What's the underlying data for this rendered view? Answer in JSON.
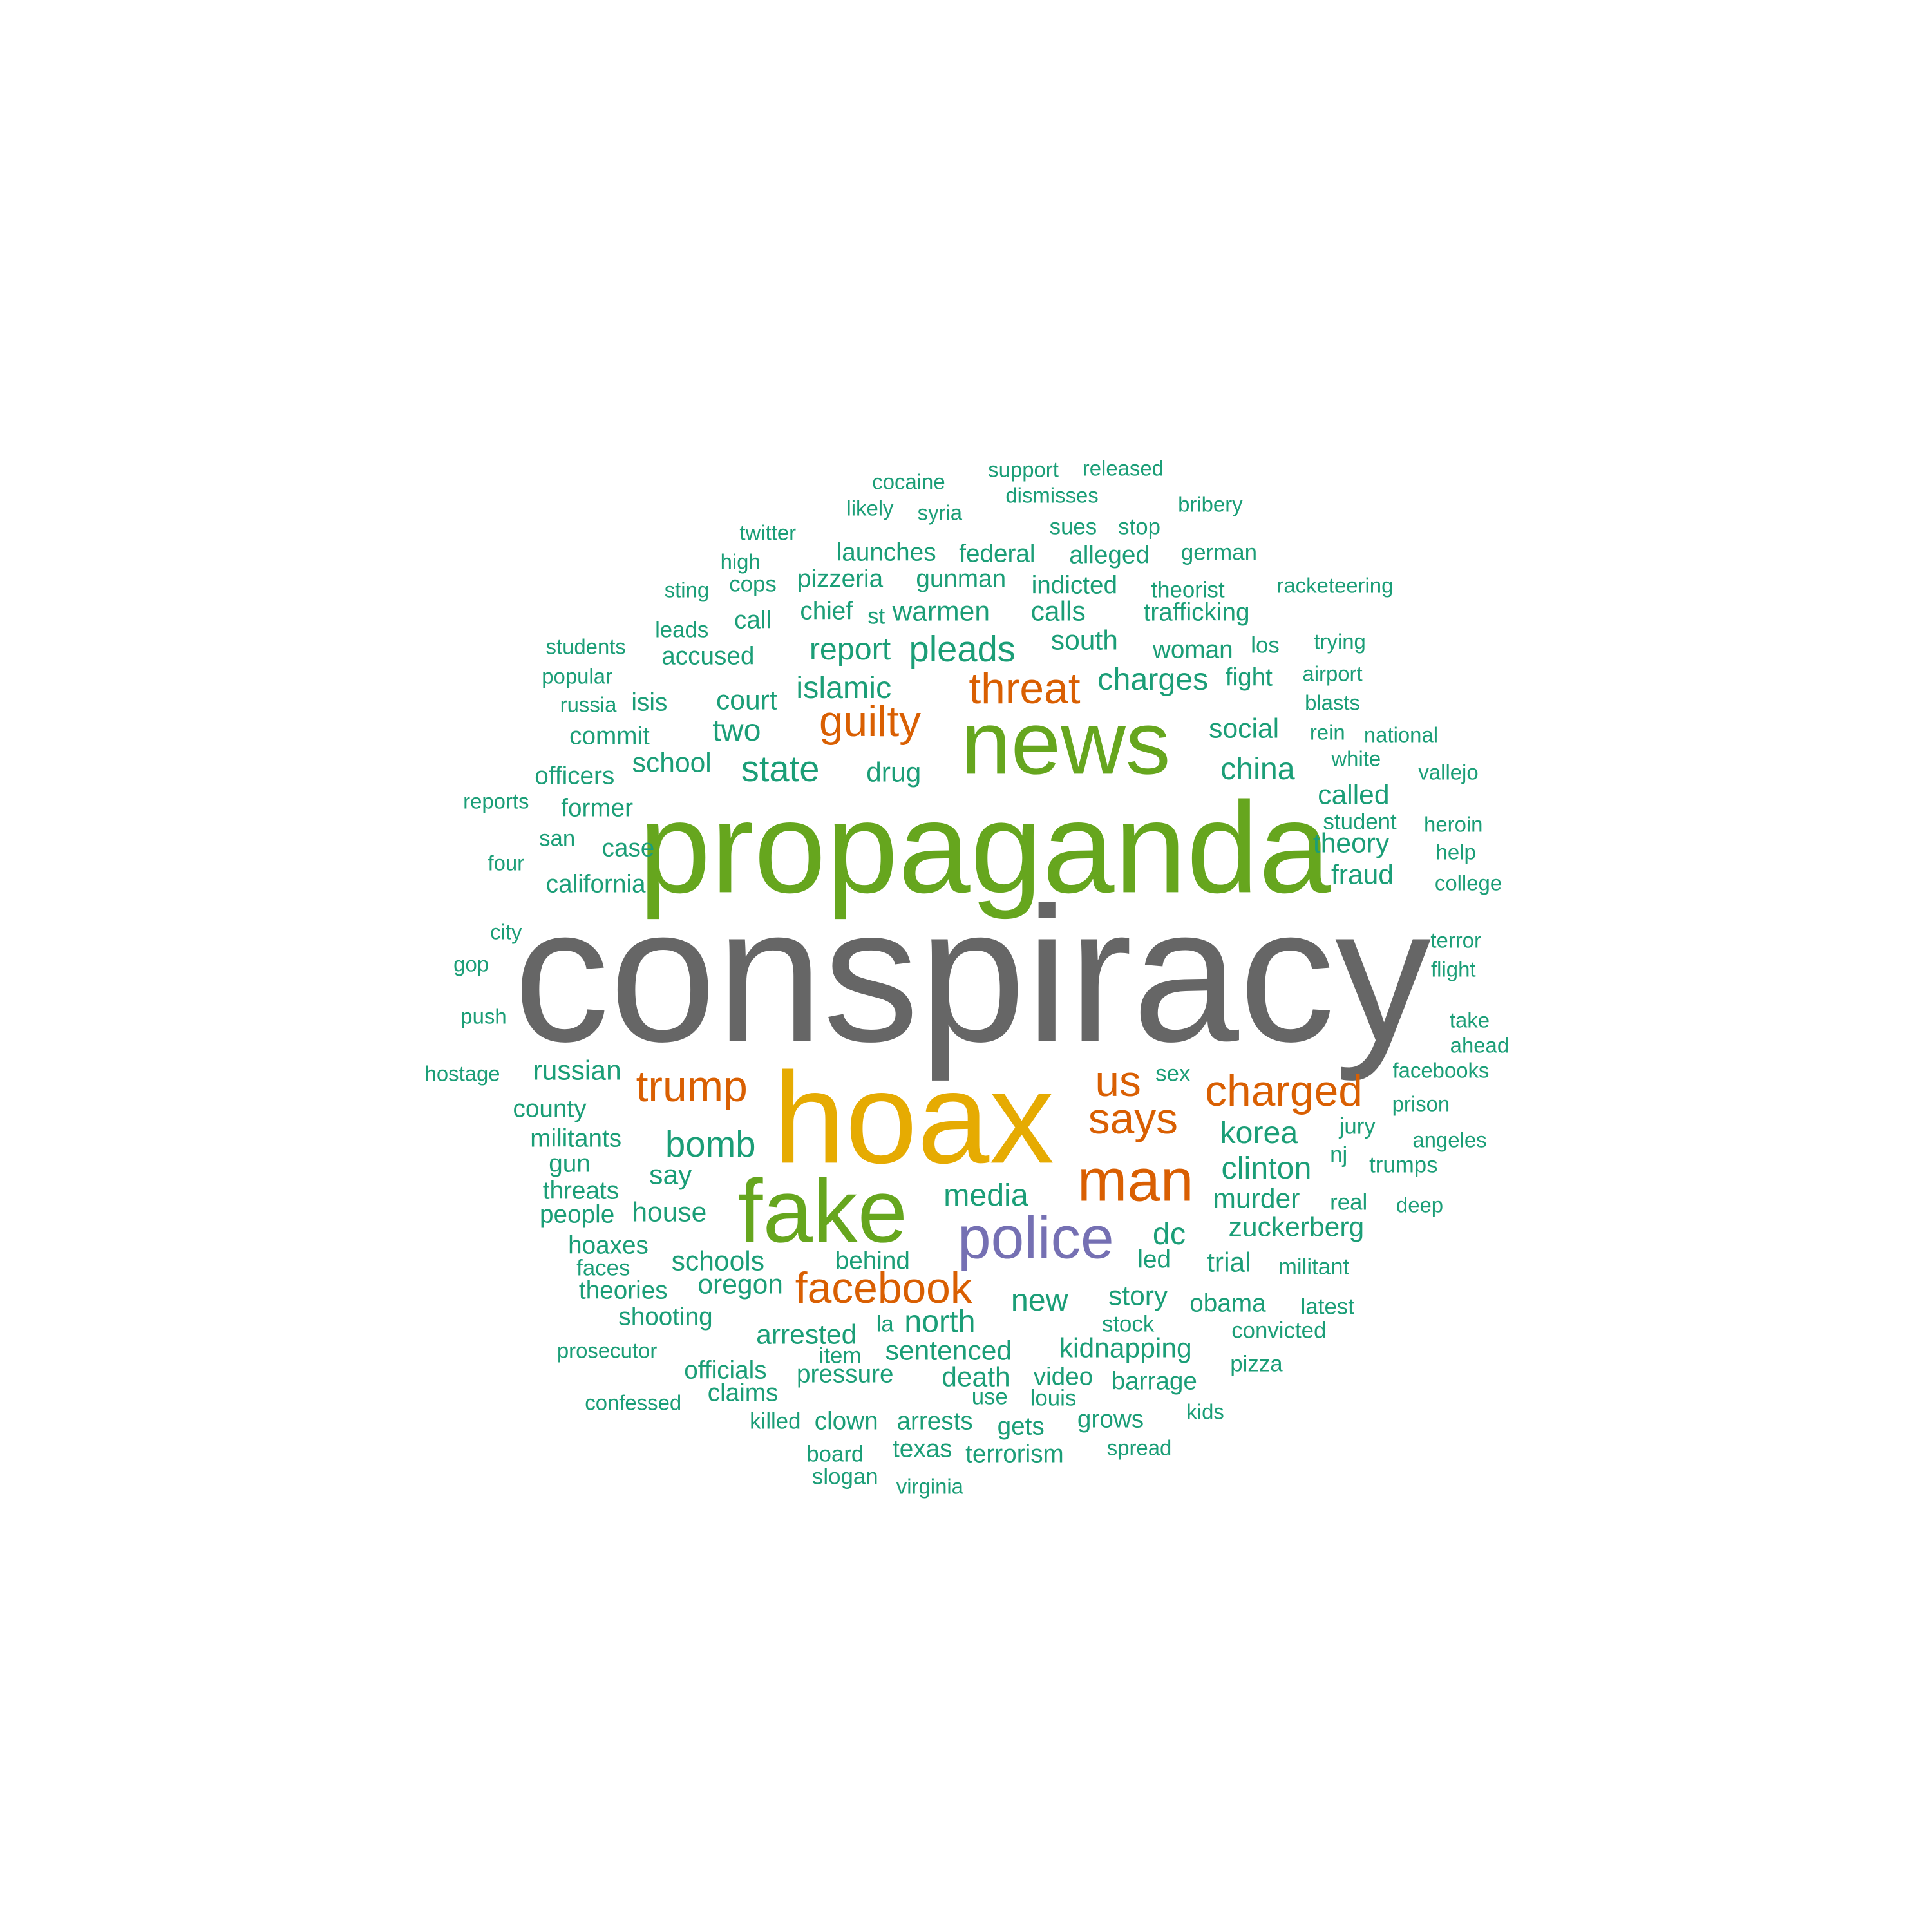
{
  "palette": {
    "dark_gray": "#666666",
    "gold": "#e6ab02",
    "green": "#66a61e",
    "purple": "#7570b3",
    "orange": "#d95f02",
    "teal": "#1b9e77"
  },
  "word_cloud": {
    "words": [
      {
        "text": "conspiracy",
        "tier": 1,
        "color": "dark_gray"
      },
      {
        "text": "propaganda",
        "tier": 2,
        "color": "green"
      },
      {
        "text": "hoax",
        "tier": 2,
        "color": "gold"
      },
      {
        "text": "news",
        "tier": 3,
        "color": "green"
      },
      {
        "text": "fake",
        "tier": 3,
        "color": "green"
      },
      {
        "text": "police",
        "tier": 4,
        "color": "purple"
      },
      {
        "text": "man",
        "tier": 4,
        "color": "orange"
      },
      {
        "text": "guilty",
        "tier": 5,
        "color": "orange"
      },
      {
        "text": "says",
        "tier": 5,
        "color": "orange"
      },
      {
        "text": "trump",
        "tier": 5,
        "color": "orange"
      },
      {
        "text": "charged",
        "tier": 5,
        "color": "orange"
      },
      {
        "text": "facebook",
        "tier": 5,
        "color": "orange"
      },
      {
        "text": "threat",
        "tier": 5,
        "color": "orange"
      },
      {
        "text": "us",
        "tier": 5,
        "color": "orange"
      },
      {
        "text": "pleads",
        "tier": 6,
        "color": "teal"
      },
      {
        "text": "state",
        "tier": 6,
        "color": "teal"
      },
      {
        "text": "bomb",
        "tier": 6,
        "color": "teal"
      },
      {
        "text": "islamic",
        "tier": 7,
        "color": "teal"
      },
      {
        "text": "report",
        "tier": 7,
        "color": "teal"
      },
      {
        "text": "charges",
        "tier": 7,
        "color": "teal"
      },
      {
        "text": "china",
        "tier": 7,
        "color": "teal"
      },
      {
        "text": "media",
        "tier": 7,
        "color": "teal"
      },
      {
        "text": "korea",
        "tier": 7,
        "color": "teal"
      },
      {
        "text": "clinton",
        "tier": 7,
        "color": "teal"
      },
      {
        "text": "north",
        "tier": 7,
        "color": "teal"
      },
      {
        "text": "new",
        "tier": 7,
        "color": "teal"
      },
      {
        "text": "dc",
        "tier": 7,
        "color": "teal"
      },
      {
        "text": "two",
        "tier": 7,
        "color": "teal"
      },
      {
        "text": "social",
        "tier": 8,
        "color": "teal"
      },
      {
        "text": "court",
        "tier": 8,
        "color": "teal"
      },
      {
        "text": "drug",
        "tier": 8,
        "color": "teal"
      },
      {
        "text": "school",
        "tier": 8,
        "color": "teal"
      },
      {
        "text": "south",
        "tier": 8,
        "color": "teal"
      },
      {
        "text": "warmen",
        "tier": 8,
        "color": "teal"
      },
      {
        "text": "calls",
        "tier": 8,
        "color": "teal"
      },
      {
        "text": "story",
        "tier": 8,
        "color": "teal"
      },
      {
        "text": "schools",
        "tier": 8,
        "color": "teal"
      },
      {
        "text": "oregon",
        "tier": 8,
        "color": "teal"
      },
      {
        "text": "sentenced",
        "tier": 8,
        "color": "teal"
      },
      {
        "text": "kidnapping",
        "tier": 8,
        "color": "teal"
      },
      {
        "text": "murder",
        "tier": 8,
        "color": "teal"
      },
      {
        "text": "zuckerberg",
        "tier": 8,
        "color": "teal"
      },
      {
        "text": "trial",
        "tier": 8,
        "color": "teal"
      },
      {
        "text": "theory",
        "tier": 8,
        "color": "teal"
      },
      {
        "text": "fraud",
        "tier": 8,
        "color": "teal"
      },
      {
        "text": "called",
        "tier": 8,
        "color": "teal"
      },
      {
        "text": "russian",
        "tier": 8,
        "color": "teal"
      },
      {
        "text": "say",
        "tier": 8,
        "color": "teal"
      },
      {
        "text": "house",
        "tier": 8,
        "color": "teal"
      },
      {
        "text": "arrested",
        "tier": 8,
        "color": "teal"
      },
      {
        "text": "death",
        "tier": 8,
        "color": "teal"
      },
      {
        "text": "launches",
        "tier": 9,
        "color": "teal"
      },
      {
        "text": "federal",
        "tier": 9,
        "color": "teal"
      },
      {
        "text": "alleged",
        "tier": 9,
        "color": "teal"
      },
      {
        "text": "pizzeria",
        "tier": 9,
        "color": "teal"
      },
      {
        "text": "gunman",
        "tier": 9,
        "color": "teal"
      },
      {
        "text": "indicted",
        "tier": 9,
        "color": "teal"
      },
      {
        "text": "trafficking",
        "tier": 9,
        "color": "teal"
      },
      {
        "text": "chief",
        "tier": 9,
        "color": "teal"
      },
      {
        "text": "call",
        "tier": 9,
        "color": "teal"
      },
      {
        "text": "accused",
        "tier": 9,
        "color": "teal"
      },
      {
        "text": "woman",
        "tier": 9,
        "color": "teal"
      },
      {
        "text": "fight",
        "tier": 9,
        "color": "teal"
      },
      {
        "text": "commit",
        "tier": 9,
        "color": "teal"
      },
      {
        "text": "officers",
        "tier": 9,
        "color": "teal"
      },
      {
        "text": "former",
        "tier": 9,
        "color": "teal"
      },
      {
        "text": "case",
        "tier": 9,
        "color": "teal"
      },
      {
        "text": "california",
        "tier": 9,
        "color": "teal"
      },
      {
        "text": "county",
        "tier": 9,
        "color": "teal"
      },
      {
        "text": "militants",
        "tier": 9,
        "color": "teal"
      },
      {
        "text": "people",
        "tier": 9,
        "color": "teal"
      },
      {
        "text": "hoaxes",
        "tier": 9,
        "color": "teal"
      },
      {
        "text": "theories",
        "tier": 9,
        "color": "teal"
      },
      {
        "text": "shooting",
        "tier": 9,
        "color": "teal"
      },
      {
        "text": "behind",
        "tier": 9,
        "color": "teal"
      },
      {
        "text": "led",
        "tier": 9,
        "color": "teal"
      },
      {
        "text": "obama",
        "tier": 9,
        "color": "teal"
      },
      {
        "text": "officials",
        "tier": 9,
        "color": "teal"
      },
      {
        "text": "pressure",
        "tier": 9,
        "color": "teal"
      },
      {
        "text": "video",
        "tier": 9,
        "color": "teal"
      },
      {
        "text": "barrage",
        "tier": 9,
        "color": "teal"
      },
      {
        "text": "claims",
        "tier": 9,
        "color": "teal"
      },
      {
        "text": "clown",
        "tier": 9,
        "color": "teal"
      },
      {
        "text": "arrests",
        "tier": 9,
        "color": "teal"
      },
      {
        "text": "grows",
        "tier": 9,
        "color": "teal"
      },
      {
        "text": "texas",
        "tier": 9,
        "color": "teal"
      },
      {
        "text": "terrorism",
        "tier": 9,
        "color": "teal"
      },
      {
        "text": "gets",
        "tier": 9,
        "color": "teal"
      },
      {
        "text": "gun",
        "tier": 9,
        "color": "teal"
      },
      {
        "text": "threats",
        "tier": 9,
        "color": "teal"
      },
      {
        "text": "isis",
        "tier": 9,
        "color": "teal"
      },
      {
        "text": "cops",
        "tier": 10,
        "color": "teal"
      },
      {
        "text": "sues",
        "tier": 10,
        "color": "teal"
      },
      {
        "text": "stop",
        "tier": 10,
        "color": "teal"
      },
      {
        "text": "german",
        "tier": 10,
        "color": "teal"
      },
      {
        "text": "theorist",
        "tier": 10,
        "color": "teal"
      },
      {
        "text": "st",
        "tier": 10,
        "color": "teal"
      },
      {
        "text": "leads",
        "tier": 10,
        "color": "teal"
      },
      {
        "text": "los",
        "tier": 10,
        "color": "teal"
      },
      {
        "text": "student",
        "tier": 10,
        "color": "teal"
      },
      {
        "text": "jury",
        "tier": 10,
        "color": "teal"
      },
      {
        "text": "nj",
        "tier": 10,
        "color": "teal"
      },
      {
        "text": "trumps",
        "tier": 10,
        "color": "teal"
      },
      {
        "text": "real",
        "tier": 10,
        "color": "teal"
      },
      {
        "text": "militant",
        "tier": 10,
        "color": "teal"
      },
      {
        "text": "latest",
        "tier": 10,
        "color": "teal"
      },
      {
        "text": "convicted",
        "tier": 10,
        "color": "teal"
      },
      {
        "text": "la",
        "tier": 10,
        "color": "teal"
      },
      {
        "text": "item",
        "tier": 10,
        "color": "teal"
      },
      {
        "text": "louis",
        "tier": 10,
        "color": "teal"
      },
      {
        "text": "stock",
        "tier": 10,
        "color": "teal"
      },
      {
        "text": "pizza",
        "tier": 10,
        "color": "teal"
      },
      {
        "text": "use",
        "tier": 10,
        "color": "teal"
      },
      {
        "text": "board",
        "tier": 10,
        "color": "teal"
      },
      {
        "text": "slogan",
        "tier": 10,
        "color": "teal"
      },
      {
        "text": "killed",
        "tier": 10,
        "color": "teal"
      },
      {
        "text": "faces",
        "tier": 10,
        "color": "teal"
      },
      {
        "text": "sex",
        "tier": 10,
        "color": "teal"
      },
      {
        "text": "san",
        "tier": 10,
        "color": "teal"
      },
      {
        "text": "cocaine",
        "tier": 11,
        "color": "teal"
      },
      {
        "text": "support",
        "tier": 11,
        "color": "teal"
      },
      {
        "text": "released",
        "tier": 11,
        "color": "teal"
      },
      {
        "text": "likely",
        "tier": 11,
        "color": "teal"
      },
      {
        "text": "syria",
        "tier": 11,
        "color": "teal"
      },
      {
        "text": "dismisses",
        "tier": 11,
        "color": "teal"
      },
      {
        "text": "bribery",
        "tier": 11,
        "color": "teal"
      },
      {
        "text": "twitter",
        "tier": 11,
        "color": "teal"
      },
      {
        "text": "high",
        "tier": 11,
        "color": "teal"
      },
      {
        "text": "sting",
        "tier": 11,
        "color": "teal"
      },
      {
        "text": "racketeering",
        "tier": 11,
        "color": "teal"
      },
      {
        "text": "students",
        "tier": 11,
        "color": "teal"
      },
      {
        "text": "trying",
        "tier": 11,
        "color": "teal"
      },
      {
        "text": "popular",
        "tier": 11,
        "color": "teal"
      },
      {
        "text": "airport",
        "tier": 11,
        "color": "teal"
      },
      {
        "text": "russia",
        "tier": 11,
        "color": "teal"
      },
      {
        "text": "blasts",
        "tier": 11,
        "color": "teal"
      },
      {
        "text": "rein",
        "tier": 11,
        "color": "teal"
      },
      {
        "text": "national",
        "tier": 11,
        "color": "teal"
      },
      {
        "text": "white",
        "tier": 11,
        "color": "teal"
      },
      {
        "text": "vallejo",
        "tier": 11,
        "color": "teal"
      },
      {
        "text": "reports",
        "tier": 11,
        "color": "teal"
      },
      {
        "text": "heroin",
        "tier": 11,
        "color": "teal"
      },
      {
        "text": "help",
        "tier": 11,
        "color": "teal"
      },
      {
        "text": "four",
        "tier": 11,
        "color": "teal"
      },
      {
        "text": "college",
        "tier": 11,
        "color": "teal"
      },
      {
        "text": "city",
        "tier": 11,
        "color": "teal"
      },
      {
        "text": "terror",
        "tier": 11,
        "color": "teal"
      },
      {
        "text": "gop",
        "tier": 11,
        "color": "teal"
      },
      {
        "text": "flight",
        "tier": 11,
        "color": "teal"
      },
      {
        "text": "push",
        "tier": 11,
        "color": "teal"
      },
      {
        "text": "take",
        "tier": 11,
        "color": "teal"
      },
      {
        "text": "ahead",
        "tier": 11,
        "color": "teal"
      },
      {
        "text": "hostage",
        "tier": 11,
        "color": "teal"
      },
      {
        "text": "facebooks",
        "tier": 11,
        "color": "teal"
      },
      {
        "text": "prison",
        "tier": 11,
        "color": "teal"
      },
      {
        "text": "angeles",
        "tier": 11,
        "color": "teal"
      },
      {
        "text": "deep",
        "tier": 11,
        "color": "teal"
      },
      {
        "text": "prosecutor",
        "tier": 11,
        "color": "teal"
      },
      {
        "text": "confessed",
        "tier": 11,
        "color": "teal"
      },
      {
        "text": "kids",
        "tier": 11,
        "color": "teal"
      },
      {
        "text": "spread",
        "tier": 11,
        "color": "teal"
      },
      {
        "text": "virginia",
        "tier": 11,
        "color": "teal"
      }
    ]
  }
}
